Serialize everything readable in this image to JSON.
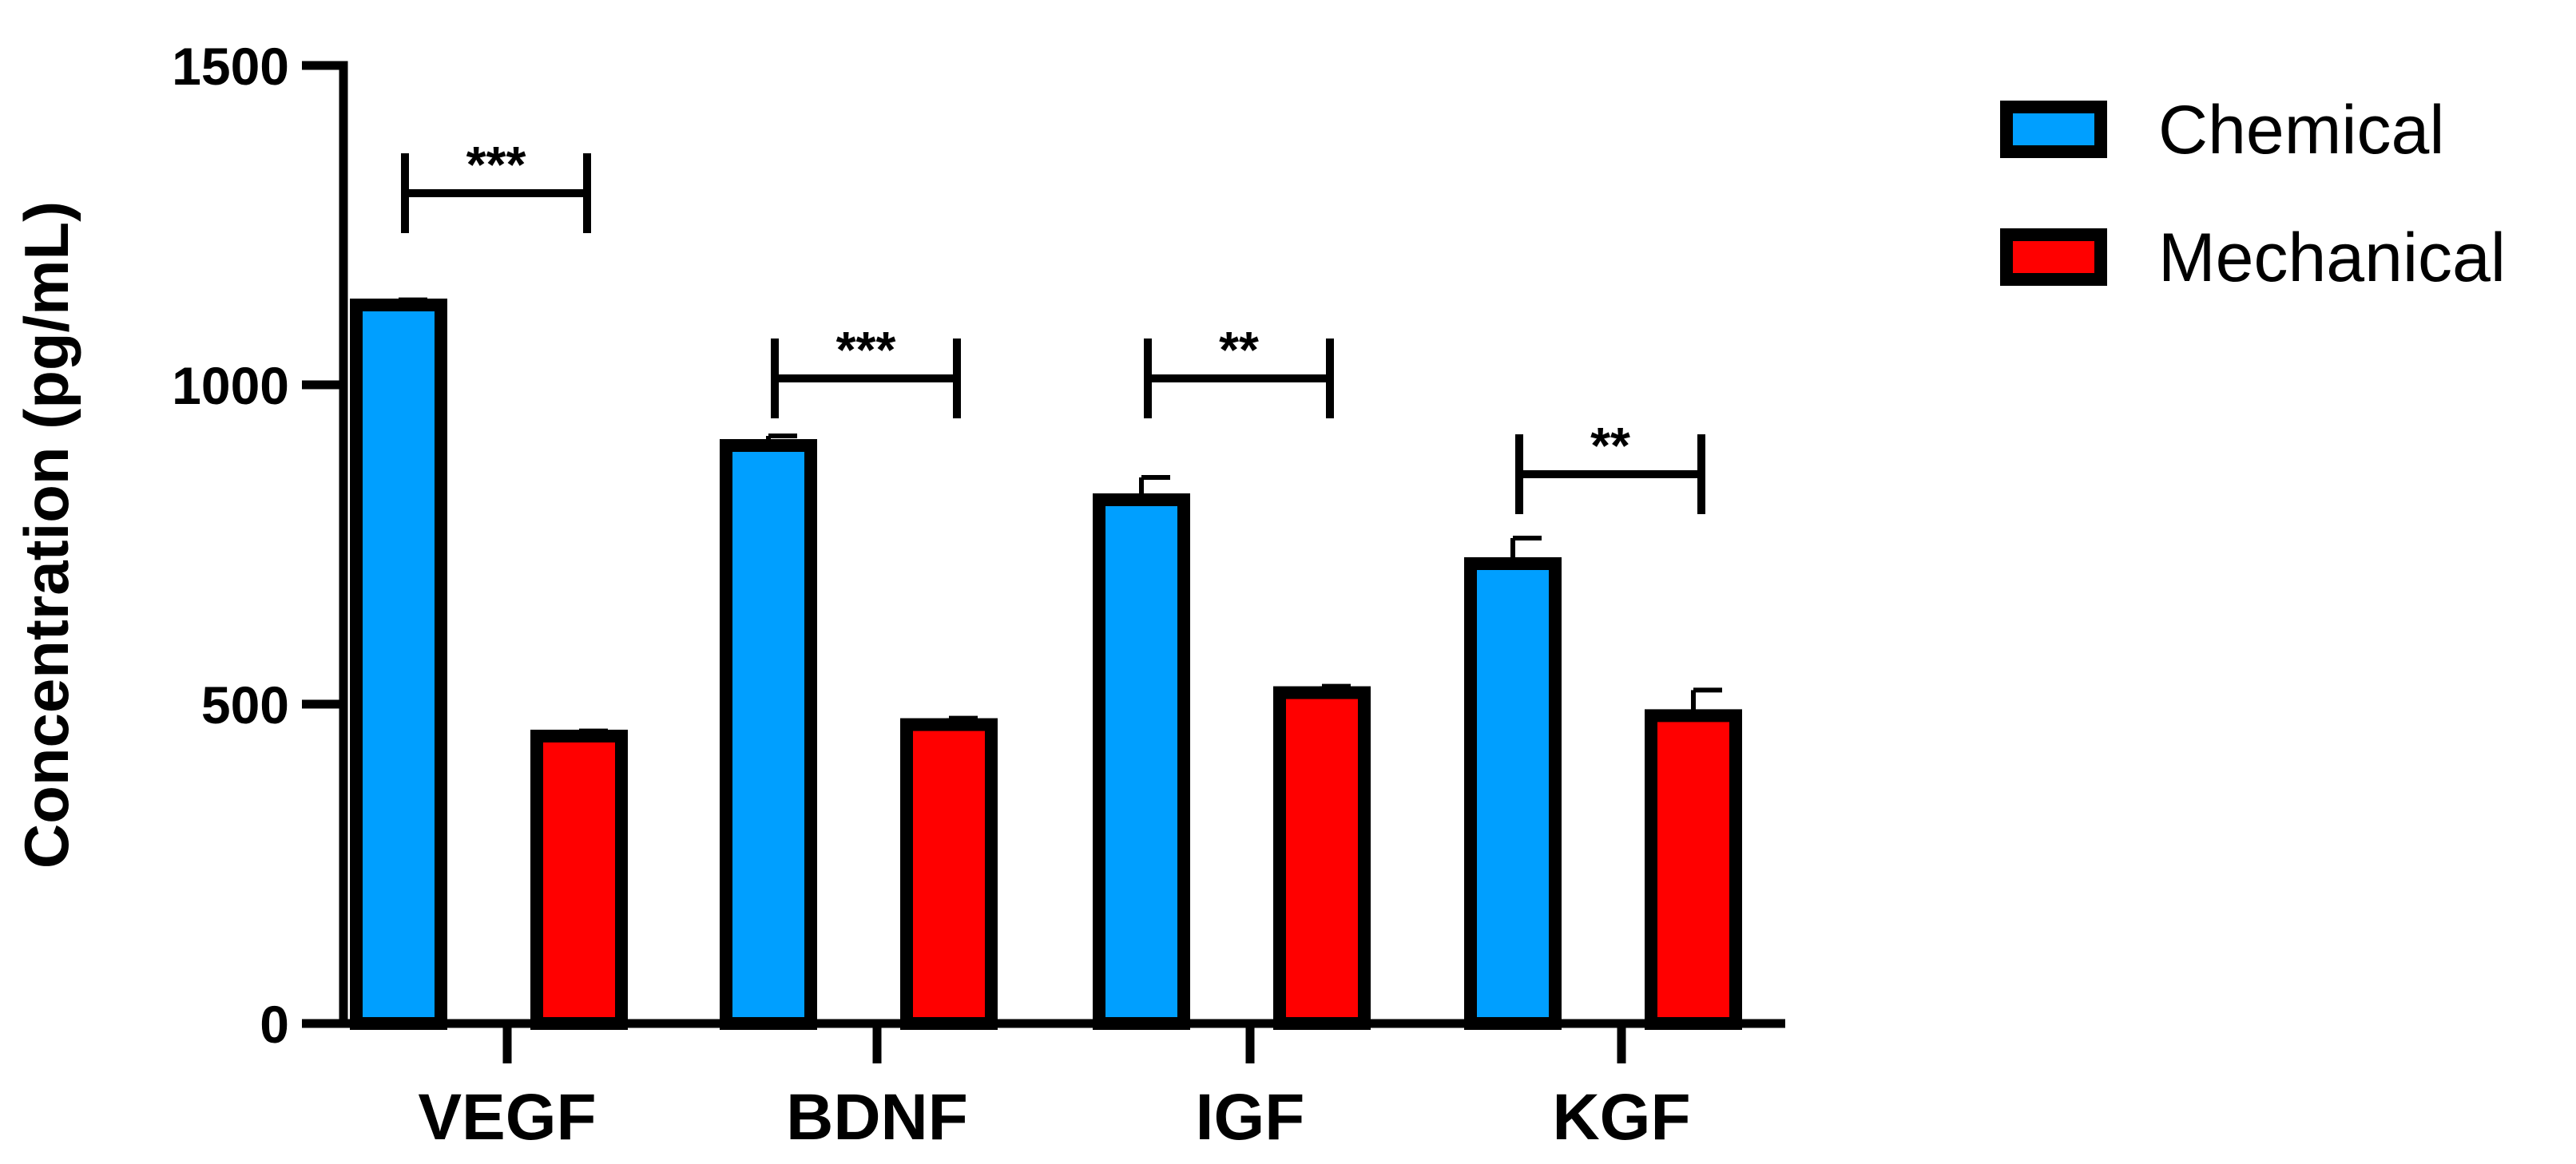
{
  "chart_data": {
    "type": "bar",
    "ylabel": "Concentration (pg/mL)",
    "ylim": [
      0,
      1500
    ],
    "yticks": [
      0,
      500,
      1000,
      1500
    ],
    "ytick_labels": [
      "0",
      "500",
      "1000",
      "1500"
    ],
    "categories": [
      "VEGF",
      "BDNF",
      "IGF",
      "KGF"
    ],
    "series": [
      {
        "name": "Chemical",
        "color": "#009FFF",
        "values": [
          1125,
          905,
          820,
          720
        ],
        "errors": [
          8,
          15,
          35,
          40
        ]
      },
      {
        "name": "Mechanical",
        "color": "#FF0000",
        "values": [
          450,
          468,
          518,
          482
        ],
        "errors": [
          8,
          10,
          10,
          40
        ]
      }
    ],
    "significance": [
      {
        "category": "VEGF",
        "label": "***",
        "y": 1300
      },
      {
        "category": "BDNF",
        "label": "***",
        "y": 1010
      },
      {
        "category": "IGF",
        "label": "**",
        "y": 1010
      },
      {
        "category": "KGF",
        "label": "**",
        "y": 860
      }
    ],
    "legend_position": "top-right",
    "bar_edge_color": "#000000",
    "grid": false
  }
}
